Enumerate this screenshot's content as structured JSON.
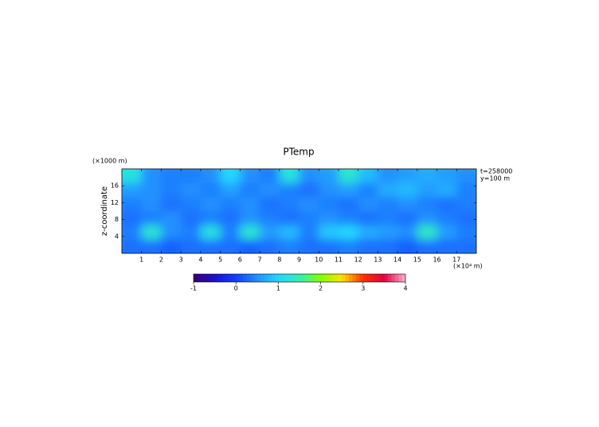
{
  "chart_data": {
    "type": "heatmap",
    "title": "PTemp",
    "y_unit": "(×1000 m)",
    "y_label": "z-coordinate",
    "x_unit": "(×10⁴ m)",
    "annotations": [
      "t=258000",
      "y=100 m"
    ],
    "xlim": [
      0,
      18
    ],
    "xticks": [
      1,
      2,
      3,
      4,
      5,
      6,
      7,
      8,
      9,
      10,
      11,
      12,
      13,
      14,
      15,
      16,
      17
    ],
    "ylim": [
      0,
      20
    ],
    "yticks": [
      4,
      8,
      12,
      16
    ],
    "z": [
      [
        1.2,
        0.5,
        0.4,
        0.4,
        0.5,
        1.0,
        0.5,
        0.4,
        1.2,
        0.5,
        0.6,
        1.3,
        0.8,
        0.5,
        0.6,
        0.7,
        0.6,
        0.5
      ],
      [
        0.6,
        0.5,
        0.4,
        0.5,
        0.4,
        0.6,
        0.4,
        0.5,
        0.4,
        0.3,
        0.5,
        0.6,
        0.4,
        0.7,
        0.8,
        0.6,
        0.7,
        0.4
      ],
      [
        0.4,
        0.5,
        0.3,
        0.4,
        0.5,
        0.4,
        0.5,
        0.3,
        0.4,
        0.5,
        0.4,
        0.3,
        0.5,
        0.4,
        0.5,
        0.4,
        0.3,
        0.4
      ],
      [
        0.3,
        0.4,
        0.5,
        0.3,
        0.4,
        0.3,
        0.5,
        0.4,
        0.3,
        0.4,
        0.5,
        0.4,
        0.3,
        0.4,
        0.3,
        0.5,
        0.4,
        0.3
      ],
      [
        0.4,
        1.3,
        0.5,
        0.4,
        1.2,
        0.4,
        1.3,
        0.6,
        0.8,
        0.4,
        0.9,
        1.0,
        0.7,
        0.6,
        0.5,
        1.4,
        0.6,
        0.4
      ],
      [
        0.3,
        0.3,
        0.2,
        0.3,
        0.3,
        0.3,
        0.2,
        0.3,
        0.4,
        0.3,
        0.3,
        0.4,
        0.3,
        0.3,
        0.2,
        0.3,
        0.3,
        0.3
      ]
    ],
    "clim": [
      -1,
      4
    ],
    "cticks": [
      -1,
      0,
      1,
      2,
      3,
      4
    ],
    "colormap": [
      "#3a0070",
      "#1a10d0",
      "#1040ff",
      "#2090ff",
      "#20d8ff",
      "#30f0b0",
      "#80ff00",
      "#ffe000",
      "#ff3000",
      "#e00040",
      "#ffb0d0"
    ]
  }
}
